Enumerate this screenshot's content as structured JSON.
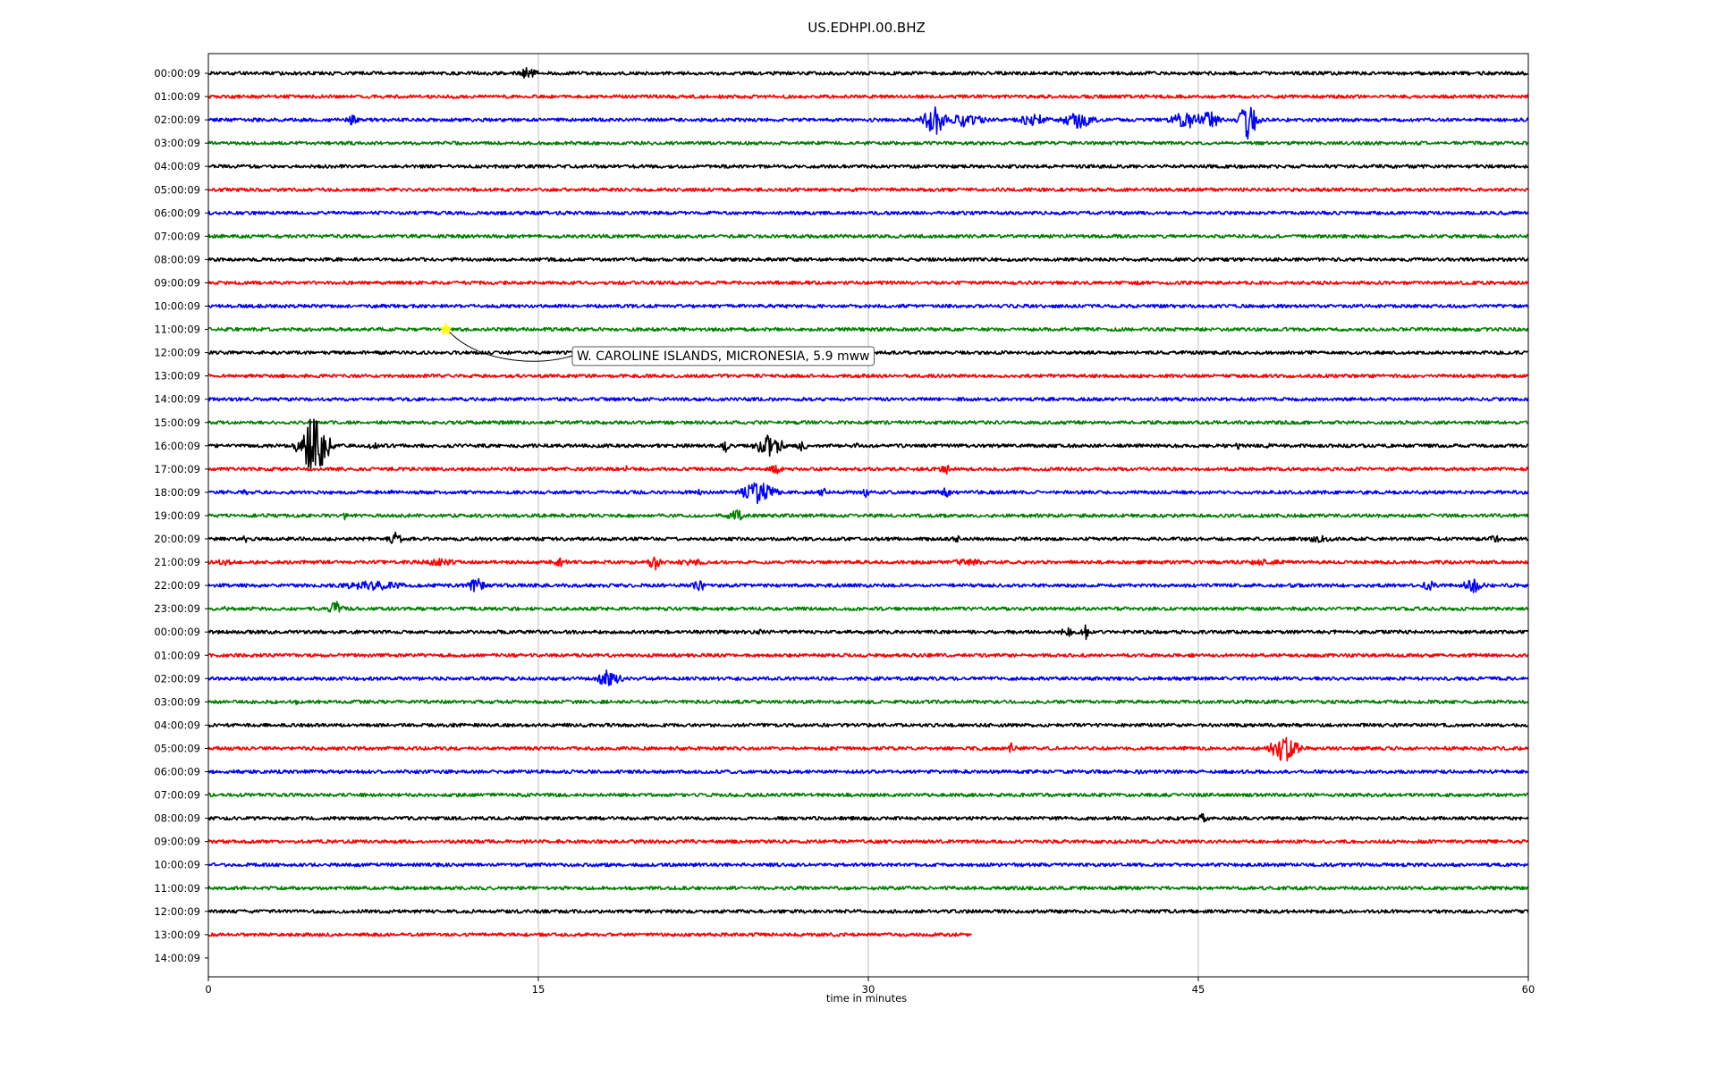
{
  "chart_data": {
    "type": "line",
    "title": "US.EDHPI.00.BHZ",
    "xlabel": "time in minutes",
    "ylabel": "",
    "xlim": [
      0,
      60
    ],
    "x_ticks": [
      0,
      15,
      30,
      45,
      60
    ],
    "x_tick_labels": [
      "0",
      "15",
      "30",
      "45",
      "60"
    ],
    "grid": "vertical lines at x ticks",
    "row_labels": [
      "00:00:09",
      "01:00:09",
      "02:00:09",
      "03:00:09",
      "04:00:09",
      "05:00:09",
      "06:00:09",
      "07:00:09",
      "08:00:09",
      "09:00:09",
      "10:00:09",
      "11:00:09",
      "12:00:09",
      "13:00:09",
      "14:00:09",
      "15:00:09",
      "16:00:09",
      "17:00:09",
      "18:00:09",
      "19:00:09",
      "20:00:09",
      "21:00:09",
      "22:00:09",
      "23:00:09",
      "00:00:09",
      "01:00:09",
      "02:00:09",
      "03:00:09",
      "04:00:09",
      "05:00:09",
      "06:00:09",
      "07:00:09",
      "08:00:09",
      "09:00:09",
      "10:00:09",
      "11:00:09",
      "12:00:09",
      "13:00:09",
      "14:00:09"
    ],
    "trace_colors": [
      "#000000",
      "#ff0000",
      "#0000ff",
      "#008000"
    ],
    "traces": [
      {
        "row": 0,
        "end": 60,
        "noise": 1.0,
        "events": [
          {
            "t": 14.5,
            "amp": 7,
            "dur": 1.0
          }
        ]
      },
      {
        "row": 1,
        "end": 60,
        "noise": 1.0,
        "events": []
      },
      {
        "row": 2,
        "end": 60,
        "noise": 1.0,
        "events": [
          {
            "t": 6.5,
            "amp": 6,
            "dur": 0.8
          },
          {
            "t": 33.0,
            "amp": 20,
            "dur": 1.0
          },
          {
            "t": 34.5,
            "amp": 10,
            "dur": 1.5
          },
          {
            "t": 37.5,
            "amp": 8,
            "dur": 1.5
          },
          {
            "t": 39.5,
            "amp": 12,
            "dur": 1.5
          },
          {
            "t": 44.5,
            "amp": 12,
            "dur": 1.5
          },
          {
            "t": 45.5,
            "amp": 12,
            "dur": 1.0
          },
          {
            "t": 47.3,
            "amp": 25,
            "dur": 0.8
          }
        ]
      },
      {
        "row": 3,
        "end": 60,
        "noise": 1.0,
        "events": []
      },
      {
        "row": 4,
        "end": 60,
        "noise": 1.0,
        "events": []
      },
      {
        "row": 5,
        "end": 60,
        "noise": 1.0,
        "events": []
      },
      {
        "row": 6,
        "end": 60,
        "noise": 1.0,
        "events": []
      },
      {
        "row": 7,
        "end": 60,
        "noise": 1.0,
        "events": []
      },
      {
        "row": 8,
        "end": 60,
        "noise": 1.0,
        "events": []
      },
      {
        "row": 9,
        "end": 60,
        "noise": 1.0,
        "events": []
      },
      {
        "row": 10,
        "end": 60,
        "noise": 1.0,
        "events": []
      },
      {
        "row": 11,
        "end": 60,
        "noise": 1.0,
        "events": []
      },
      {
        "row": 12,
        "end": 60,
        "noise": 1.0,
        "events": []
      },
      {
        "row": 13,
        "end": 60,
        "noise": 1.0,
        "events": []
      },
      {
        "row": 14,
        "end": 60,
        "noise": 1.0,
        "events": []
      },
      {
        "row": 15,
        "end": 60,
        "noise": 1.0,
        "events": []
      },
      {
        "row": 16,
        "end": 60,
        "noise": 1.0,
        "events": [
          {
            "t": 4.8,
            "amp": 40,
            "dur": 1.2
          },
          {
            "t": 7.5,
            "amp": 6,
            "dur": 0.5
          },
          {
            "t": 23.5,
            "amp": 8,
            "dur": 0.4
          },
          {
            "t": 25.5,
            "amp": 16,
            "dur": 1.2
          },
          {
            "t": 27.0,
            "amp": 7,
            "dur": 0.5
          },
          {
            "t": 29.5,
            "amp": 5,
            "dur": 0.3
          },
          {
            "t": 46.8,
            "amp": 5,
            "dur": 0.3
          },
          {
            "t": 48.2,
            "amp": 4,
            "dur": 0.3
          }
        ]
      },
      {
        "row": 17,
        "end": 60,
        "noise": 1.0,
        "events": [
          {
            "t": 19.0,
            "amp": 5,
            "dur": 0.3
          },
          {
            "t": 25.8,
            "amp": 6,
            "dur": 0.8
          },
          {
            "t": 33.5,
            "amp": 7,
            "dur": 0.5
          }
        ]
      },
      {
        "row": 18,
        "end": 60,
        "noise": 1.0,
        "events": [
          {
            "t": 1.7,
            "amp": 6,
            "dur": 0.4
          },
          {
            "t": 8.3,
            "amp": 4,
            "dur": 0.3
          },
          {
            "t": 22.3,
            "amp": 5,
            "dur": 0.3
          },
          {
            "t": 25.0,
            "amp": 14,
            "dur": 1.5
          },
          {
            "t": 28.0,
            "amp": 6,
            "dur": 0.6
          },
          {
            "t": 29.9,
            "amp": 8,
            "dur": 0.3
          },
          {
            "t": 33.5,
            "amp": 7,
            "dur": 0.8
          }
        ]
      },
      {
        "row": 19,
        "end": 60,
        "noise": 1.0,
        "events": [
          {
            "t": 6.2,
            "amp": 5,
            "dur": 0.3
          },
          {
            "t": 24.0,
            "amp": 9,
            "dur": 0.8
          }
        ]
      },
      {
        "row": 20,
        "end": 60,
        "noise": 1.0,
        "events": [
          {
            "t": 1.7,
            "amp": 6,
            "dur": 0.3
          },
          {
            "t": 8.5,
            "amp": 9,
            "dur": 0.8
          },
          {
            "t": 34.0,
            "amp": 5,
            "dur": 0.4
          },
          {
            "t": 50.5,
            "amp": 4,
            "dur": 2.5
          },
          {
            "t": 58.5,
            "amp": 4,
            "dur": 1.2
          }
        ]
      },
      {
        "row": 21,
        "end": 60,
        "noise": 1.0,
        "events": [
          {
            "t": 0.8,
            "amp": 4,
            "dur": 1.8
          },
          {
            "t": 10.5,
            "amp": 4,
            "dur": 3.2
          },
          {
            "t": 16.0,
            "amp": 6,
            "dur": 0.8
          },
          {
            "t": 20.3,
            "amp": 10,
            "dur": 0.6
          },
          {
            "t": 22.0,
            "amp": 4,
            "dur": 2.0
          },
          {
            "t": 34.5,
            "amp": 4,
            "dur": 2.5
          },
          {
            "t": 48.0,
            "amp": 4,
            "dur": 2.5
          }
        ]
      },
      {
        "row": 22,
        "end": 60,
        "noise": 1.0,
        "events": [
          {
            "t": 7.5,
            "amp": 7,
            "dur": 3.0
          },
          {
            "t": 12.2,
            "amp": 9,
            "dur": 1.0
          },
          {
            "t": 22.3,
            "amp": 9,
            "dur": 0.6
          },
          {
            "t": 55.5,
            "amp": 6,
            "dur": 1.0
          },
          {
            "t": 57.5,
            "amp": 9,
            "dur": 1.0
          }
        ]
      },
      {
        "row": 23,
        "end": 60,
        "noise": 1.0,
        "events": [
          {
            "t": 0.8,
            "amp": 4,
            "dur": 0.3
          },
          {
            "t": 5.8,
            "amp": 9,
            "dur": 0.7
          },
          {
            "t": 41.0,
            "amp": 4,
            "dur": 0.3
          }
        ]
      },
      {
        "row": 24,
        "end": 60,
        "noise": 1.0,
        "events": [
          {
            "t": 25.1,
            "amp": 5,
            "dur": 0.3
          },
          {
            "t": 39.0,
            "amp": 8,
            "dur": 0.6
          },
          {
            "t": 39.9,
            "amp": 9,
            "dur": 0.4
          },
          {
            "t": 54.2,
            "amp": 4,
            "dur": 0.2
          }
        ]
      },
      {
        "row": 25,
        "end": 60,
        "noise": 1.0,
        "events": []
      },
      {
        "row": 26,
        "end": 60,
        "noise": 1.0,
        "events": [
          {
            "t": 18.2,
            "amp": 11,
            "dur": 1.2
          }
        ]
      },
      {
        "row": 27,
        "end": 60,
        "noise": 1.0,
        "events": [
          {
            "t": 4.0,
            "amp": 4,
            "dur": 0.4
          }
        ]
      },
      {
        "row": 28,
        "end": 60,
        "noise": 1.0,
        "events": []
      },
      {
        "row": 29,
        "end": 60,
        "noise": 1.0,
        "events": [
          {
            "t": 36.5,
            "amp": 7,
            "dur": 0.5
          },
          {
            "t": 48.9,
            "amp": 18,
            "dur": 1.2
          }
        ]
      },
      {
        "row": 30,
        "end": 60,
        "noise": 1.0,
        "events": [
          {
            "t": 42.3,
            "amp": 4,
            "dur": 0.2
          }
        ]
      },
      {
        "row": 31,
        "end": 60,
        "noise": 1.0,
        "events": []
      },
      {
        "row": 32,
        "end": 60,
        "noise": 1.0,
        "events": [
          {
            "t": 0.3,
            "amp": 3,
            "dur": 0.2
          },
          {
            "t": 45.2,
            "amp": 6,
            "dur": 0.4
          }
        ]
      },
      {
        "row": 33,
        "end": 60,
        "noise": 1.0,
        "events": []
      },
      {
        "row": 34,
        "end": 60,
        "noise": 1.0,
        "events": []
      },
      {
        "row": 35,
        "end": 60,
        "noise": 1.0,
        "events": []
      },
      {
        "row": 36,
        "end": 60,
        "noise": 1.0,
        "events": [
          {
            "t": 30.5,
            "amp": 3,
            "dur": 0.2
          }
        ]
      },
      {
        "row": 37,
        "end": 34.7,
        "noise": 1.0,
        "events": []
      }
    ],
    "annotation": {
      "text": "W. CAROLINE ISLANDS, MICRONESIA, 5.9 mww",
      "marker_row": 11,
      "marker_minute": 10.8,
      "marker_color": "#ffff00"
    }
  }
}
